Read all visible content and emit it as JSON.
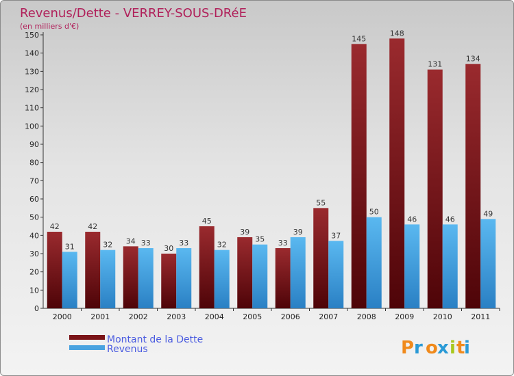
{
  "chart_data": {
    "type": "bar",
    "title": "Revenus/Dette - VERREY-SOUS-DRéE",
    "subtitle": "(en milliers d'€)",
    "xlabel": "",
    "ylabel": "",
    "ylim": [
      0,
      150
    ],
    "yticks": [
      0,
      10,
      20,
      30,
      40,
      50,
      60,
      70,
      80,
      90,
      100,
      110,
      120,
      130,
      140,
      150
    ],
    "categories": [
      "2000",
      "2001",
      "2002",
      "2003",
      "2004",
      "2005",
      "2006",
      "2007",
      "2008",
      "2009",
      "2010",
      "2011"
    ],
    "series": [
      {
        "name": "Montant de la Dette",
        "color": "#7a1418",
        "values": [
          42,
          42,
          34,
          30,
          45,
          39,
          33,
          55,
          145,
          148,
          131,
          134
        ]
      },
      {
        "name": "Revenus",
        "color": "#4aa3e0",
        "values": [
          31,
          32,
          33,
          33,
          32,
          35,
          39,
          37,
          50,
          46,
          46,
          49
        ]
      }
    ],
    "legend": "bottom-left",
    "grid": false
  },
  "brand": {
    "letters": [
      "P",
      "r",
      "o",
      "x",
      "i",
      "t",
      "i"
    ],
    "colors": [
      "#f08a1c",
      "#2a9ad6",
      "#f08a1c",
      "#2a9ad6",
      "#a8c81e",
      "#f08a1c",
      "#2a9ad6"
    ]
  }
}
